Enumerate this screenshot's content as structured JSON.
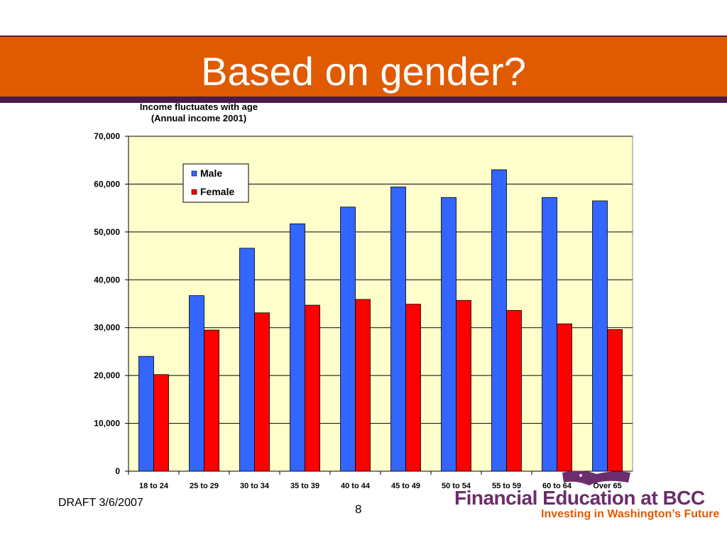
{
  "slide": {
    "title": "Based on gender?",
    "footer": "DRAFT 3/6/2007",
    "page_number": "8"
  },
  "logo": {
    "main_text": "Financial Education at BCC",
    "sub_text": "Investing in Washington’s Future"
  },
  "colors": {
    "title_band": "#e05a00",
    "title_line": "#4a1a4a",
    "plot_bg": "#ffffcc",
    "male": "#3366ff",
    "female": "#ff0000"
  },
  "chart_data": {
    "type": "bar",
    "title": "Income fluctuates with age",
    "subtitle": "(Annual income 2001)",
    "xlabel": "",
    "ylabel": "",
    "categories": [
      "18 to 24",
      "25 to 29",
      "30 to 34",
      "35 to 39",
      "40 to 44",
      "45 to 49",
      "50 to 54",
      "55 to 59",
      "60 to 64",
      "Over 65"
    ],
    "series": [
      {
        "name": "Male",
        "values": [
          24000,
          36700,
          46600,
          51700,
          55200,
          59400,
          57200,
          63000,
          57200,
          56500
        ]
      },
      {
        "name": "Female",
        "values": [
          20200,
          29500,
          33100,
          34700,
          35900,
          34900,
          35700,
          33600,
          30800,
          29600
        ]
      }
    ],
    "ylim": [
      0,
      70000
    ],
    "yticks": [
      0,
      10000,
      20000,
      30000,
      40000,
      50000,
      60000,
      70000
    ],
    "ytick_labels": [
      "0",
      "10,000",
      "20,000",
      "30,000",
      "40,000",
      "50,000",
      "60,000",
      "70,000"
    ],
    "grid": true,
    "legend_position": "top-left"
  }
}
